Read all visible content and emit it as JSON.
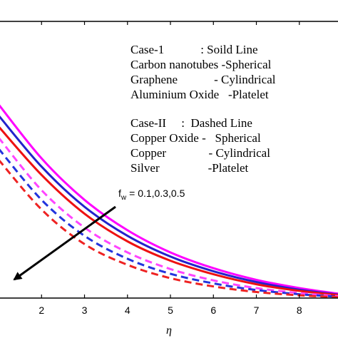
{
  "chart_data": {
    "type": "line",
    "xlabel": "η",
    "ylabel": "",
    "title": "",
    "xlim": [
      0.95,
      8.9
    ],
    "ylim": [
      0.0,
      1.0
    ],
    "x_ticks": [
      "2",
      "3",
      "4",
      "5",
      "6",
      "7",
      "8"
    ],
    "grid": false,
    "legend_position": "top-right",
    "legend_lines": [
      "Case-1            : Soild Line",
      "Carbon nanotubes -Spherical",
      "Graphene            - Cylindrical",
      "Aluminium Oxide   -Platelet",
      "Case-II     :  Dashed Line",
      "Copper Oxide -   Spherical",
      "Copper              - Cylindrical",
      "Silver                -Platelet"
    ],
    "annotation": {
      "prefix": "f",
      "subscript": "w",
      "text": "= 0.1,0.3,0.5"
    },
    "series": [
      {
        "style": "solid",
        "color": "#ff00ff",
        "x": [
          1.0,
          2,
          3,
          4,
          5,
          6,
          7,
          8,
          8.9
        ],
        "y": [
          0.7,
          0.505,
          0.355,
          0.245,
          0.165,
          0.108,
          0.066,
          0.036,
          0.016
        ]
      },
      {
        "style": "solid",
        "color": "#2222cc",
        "x": [
          1.0,
          2,
          3,
          4,
          5,
          6,
          7,
          8,
          8.9
        ],
        "y": [
          0.66,
          0.475,
          0.33,
          0.225,
          0.15,
          0.097,
          0.058,
          0.03,
          0.013
        ]
      },
      {
        "style": "solid",
        "color": "#ee1111",
        "x": [
          1.0,
          2,
          3,
          4,
          5,
          6,
          7,
          8,
          8.9
        ],
        "y": [
          0.62,
          0.445,
          0.305,
          0.205,
          0.135,
          0.086,
          0.05,
          0.026,
          0.011
        ]
      },
      {
        "style": "dashed",
        "color": "#ff44ff",
        "x": [
          1.0,
          2,
          3,
          4,
          5,
          6,
          7,
          8,
          8.9
        ],
        "y": [
          0.58,
          0.39,
          0.255,
          0.165,
          0.105,
          0.064,
          0.036,
          0.018,
          0.007
        ]
      },
      {
        "style": "dashed",
        "color": "#2233dd",
        "x": [
          1.0,
          2,
          3,
          4,
          5,
          6,
          7,
          8,
          8.9
        ],
        "y": [
          0.54,
          0.355,
          0.225,
          0.142,
          0.088,
          0.053,
          0.029,
          0.014,
          0.005
        ]
      },
      {
        "style": "dashed",
        "color": "#ee2222",
        "x": [
          1.0,
          2,
          3,
          4,
          5,
          6,
          7,
          8,
          8.9
        ],
        "y": [
          0.5,
          0.32,
          0.195,
          0.12,
          0.072,
          0.042,
          0.022,
          0.01,
          0.003
        ]
      }
    ]
  }
}
